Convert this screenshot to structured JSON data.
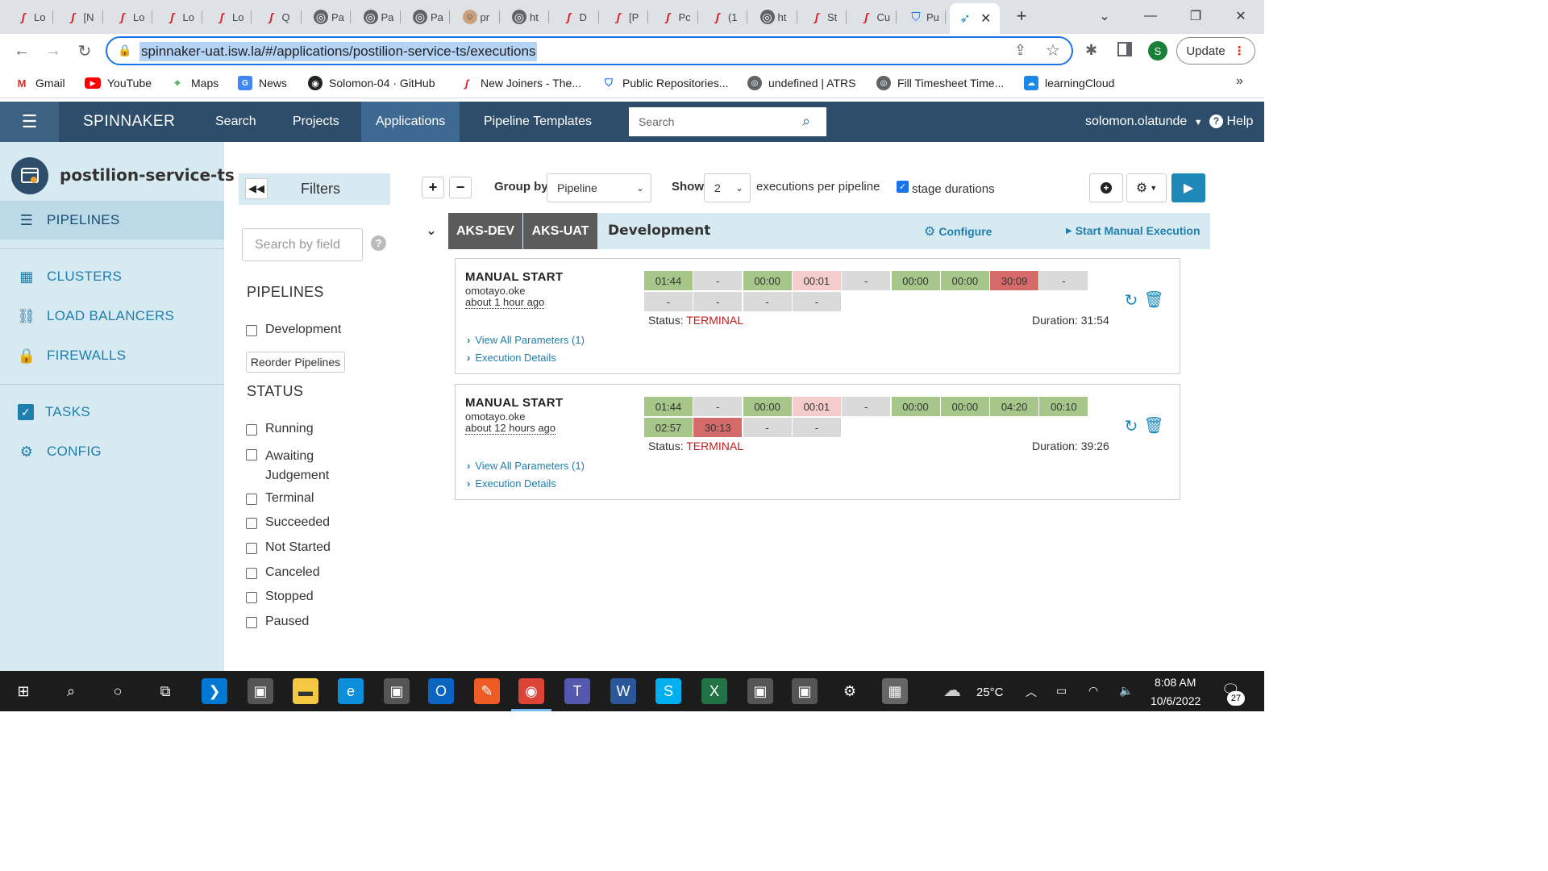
{
  "browser": {
    "tabs": [
      {
        "label": "Lo",
        "icon": "spinnaker-red-icon"
      },
      {
        "label": "[N",
        "icon": "spinnaker-red-icon"
      },
      {
        "label": "Lo",
        "icon": "spinnaker-red-icon"
      },
      {
        "label": "Lo",
        "icon": "spinnaker-red-icon"
      },
      {
        "label": "Lo",
        "icon": "spinnaker-red-icon"
      },
      {
        "label": "Q",
        "icon": "spinnaker-red-icon"
      },
      {
        "label": "Pa",
        "icon": "globe-icon"
      },
      {
        "label": "Pa",
        "icon": "globe-icon"
      },
      {
        "label": "Pa",
        "icon": "globe-icon"
      },
      {
        "label": "pr",
        "icon": "avatar-icon"
      },
      {
        "label": "ht",
        "icon": "globe-icon"
      },
      {
        "label": "D",
        "icon": "spinnaker-red-icon"
      },
      {
        "label": "[P",
        "icon": "spinnaker-red-icon"
      },
      {
        "label": "Pc",
        "icon": "spinnaker-red-icon"
      },
      {
        "label": "(1",
        "icon": "spinnaker-red-icon"
      },
      {
        "label": "ht",
        "icon": "globe-icon"
      },
      {
        "label": "St",
        "icon": "spinnaker-red-icon"
      },
      {
        "label": "Cu",
        "icon": "spinnaker-red-icon"
      },
      {
        "label": "Pu",
        "icon": "shield-blue-icon"
      }
    ],
    "url": "spinnaker-uat.isw.la/#/applications/postilion-service-ts/executions",
    "update_label": "Update",
    "profile_initial": "S",
    "bookmarks": [
      {
        "label": "Gmail",
        "icon": "gmail-icon"
      },
      {
        "label": "YouTube",
        "icon": "youtube-icon"
      },
      {
        "label": "Maps",
        "icon": "maps-icon"
      },
      {
        "label": "News",
        "icon": "news-icon"
      },
      {
        "label": "Solomon-04 · GitHub",
        "icon": "github-icon"
      },
      {
        "label": "New Joiners - The...",
        "icon": "spinnaker-red-icon"
      },
      {
        "label": "Public Repositories...",
        "icon": "shield-blue-icon"
      },
      {
        "label": "undefined | ATRS",
        "icon": "globe-icon"
      },
      {
        "label": "Fill Timesheet Time...",
        "icon": "globe-icon"
      },
      {
        "label": "learningCloud",
        "icon": "cloud-icon"
      }
    ],
    "bookmarks_more": "»"
  },
  "header": {
    "brand": "SPINNAKER",
    "nav": [
      "Search",
      "Projects",
      "Applications",
      "Pipeline Templates"
    ],
    "active_nav": "Applications",
    "search_placeholder": "Search",
    "user": "solomon.olatunde",
    "help": "Help"
  },
  "app": {
    "name": "postilion-service-ts",
    "nav": {
      "pipelines": "PIPELINES",
      "clusters": "CLUSTERS",
      "load_balancers": "LOAD BALANCERS",
      "firewalls": "FIREWALLS",
      "tasks": "TASKS",
      "config": "CONFIG"
    }
  },
  "filters": {
    "title": "Filters",
    "search_placeholder": "Search by field",
    "pipelines_title": "PIPELINES",
    "pipelines": [
      "Development"
    ],
    "reorder_label": "Reorder Pipelines",
    "status_title": "STATUS",
    "status_line1": [
      "Running",
      "Awaiting",
      "Terminal",
      "Succeeded",
      "Not Started",
      "Canceled",
      "Stopped",
      "Paused"
    ],
    "awaiting_line2": "Judgement"
  },
  "toolbar": {
    "group_by_label": "Group by",
    "group_by_value": "Pipeline",
    "show_label": "Show",
    "show_value": "2",
    "per_pipeline_label": "executions per pipeline",
    "stage_durations_label": "stage durations",
    "stage_durations_checked": true
  },
  "group": {
    "accounts": [
      "AKS-DEV",
      "AKS-UAT"
    ],
    "pipeline_name": "Development",
    "configure_label": "Configure",
    "start_manual_label": "Start Manual Execution"
  },
  "executions": [
    {
      "trigger": "MANUAL START",
      "user": "omotayo.oke",
      "time": "about 1 hour ago",
      "stages_row1": [
        {
          "label": "01:44",
          "status": "succeeded"
        },
        {
          "label": "-",
          "status": "not-started"
        },
        {
          "label": "00:00",
          "status": "succeeded"
        },
        {
          "label": "00:01",
          "status": "warning"
        },
        {
          "label": "-",
          "status": "not-started"
        },
        {
          "label": "00:00",
          "status": "succeeded"
        },
        {
          "label": "00:00",
          "status": "succeeded"
        },
        {
          "label": "30:09",
          "status": "terminal"
        },
        {
          "label": "-",
          "status": "not-started"
        }
      ],
      "stages_row2": [
        {
          "label": "-",
          "status": "not-started"
        },
        {
          "label": "-",
          "status": "not-started"
        },
        {
          "label": "-",
          "status": "not-started"
        },
        {
          "label": "-",
          "status": "not-started"
        }
      ],
      "status_label": "Status:",
      "status_value": "TERMINAL",
      "duration": "Duration: 31:54",
      "params_link": "View All Parameters (1)",
      "details_link": "Execution Details"
    },
    {
      "trigger": "MANUAL START",
      "user": "omotayo.oke",
      "time": "about 12 hours ago",
      "stages_row1": [
        {
          "label": "01:44",
          "status": "succeeded"
        },
        {
          "label": "-",
          "status": "not-started"
        },
        {
          "label": "00:00",
          "status": "succeeded"
        },
        {
          "label": "00:01",
          "status": "warning"
        },
        {
          "label": "-",
          "status": "not-started"
        },
        {
          "label": "00:00",
          "status": "succeeded"
        },
        {
          "label": "00:00",
          "status": "succeeded"
        },
        {
          "label": "04:20",
          "status": "succeeded"
        },
        {
          "label": "00:10",
          "status": "succeeded"
        }
      ],
      "stages_row2": [
        {
          "label": "02:57",
          "status": "succeeded"
        },
        {
          "label": "30:13",
          "status": "terminal"
        },
        {
          "label": "-",
          "status": "not-started"
        },
        {
          "label": "-",
          "status": "not-started"
        }
      ],
      "status_label": "Status:",
      "status_value": "TERMINAL",
      "duration": "Duration: 39:26",
      "params_link": "View All Parameters (1)",
      "details_link": "Execution Details"
    }
  ],
  "taskbar": {
    "apps": [
      "windows-start-icon",
      "search-icon",
      "cortana-icon",
      "task-view-icon",
      "vscode-icon",
      "app-icon",
      "file-explorer-icon",
      "edge-icon",
      "app-icon",
      "outlook-icon",
      "postman-icon",
      "chrome-icon",
      "teams-icon",
      "word-icon",
      "skype-icon",
      "excel-icon",
      "app-icon",
      "app-icon",
      "settings-icon",
      "calculator-icon"
    ],
    "weather": "25°C",
    "time": "8:08 AM",
    "date": "10/6/2022",
    "notifications": "27"
  },
  "colors": {
    "app_header": "#2d4d6a",
    "left_nav_bg": "#d7e9f1",
    "link": "#1e7fae",
    "stage_succeeded": "#a6c68a",
    "stage_not_started": "#dadada",
    "stage_warning": "#f4cccc",
    "stage_terminal": "#d56a6a",
    "status_terminal": "#c41a1a"
  }
}
